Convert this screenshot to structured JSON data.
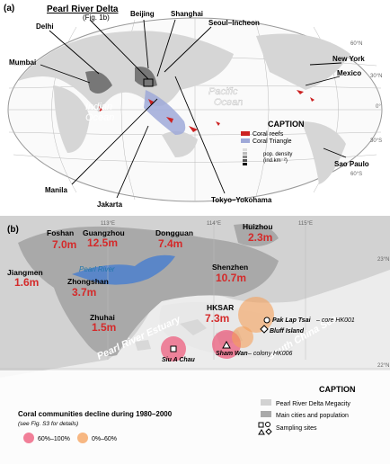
{
  "panel_a": {
    "label": "(a)",
    "inset_title": "Pearl River Delta",
    "inset_ref": "(Fig. 1b)",
    "cities": [
      "Beijing",
      "Shanghai",
      "Seoul–Incheon",
      "Delhi",
      "Mumbai",
      "New York",
      "Mexico",
      "Manila",
      "Jakarta",
      "Tokyo–Yokohama",
      "Sao Paulo"
    ],
    "oceans": [
      "Indian",
      "Ocean",
      "Pacific",
      "Ocean"
    ],
    "latitudes": [
      "60°N",
      "30°N",
      "0°",
      "30°S",
      "60°S"
    ],
    "caption": {
      "title": "CAPTION",
      "items": [
        "Coral reefs",
        "Coral Triangle"
      ],
      "density_title": "pop. density",
      "density_unit": "(ind.km⁻²)"
    }
  },
  "panel_b": {
    "label": "(b)",
    "cities": [
      {
        "name": "Foshan",
        "pop": "7.0m"
      },
      {
        "name": "Guangzhou",
        "pop": "12.5m"
      },
      {
        "name": "Dongguan",
        "pop": "7.4m"
      },
      {
        "name": "Huizhou",
        "pop": "2.3m"
      },
      {
        "name": "Jiangmen",
        "pop": "1.6m"
      },
      {
        "name": "Zhongshan",
        "pop": "3.7m"
      },
      {
        "name": "Shenzhen",
        "pop": "10.7m"
      },
      {
        "name": "Zhuhai",
        "pop": "1.5m"
      },
      {
        "name": "HKSAR",
        "pop": "7.3m"
      }
    ],
    "water": [
      "Pearl River",
      "Pearl River Estuary",
      "South China Sea"
    ],
    "longitudes": [
      "113°E",
      "114°E",
      "115°E"
    ],
    "latitudes": [
      "23°N",
      "22°N"
    ],
    "sites": [
      {
        "name": "Pak Lap Tsai",
        "note": "– core HK001"
      },
      {
        "name": "Bluff Island"
      },
      {
        "name": "Sham Wan",
        "note": "– colony HK006"
      },
      {
        "name": "Siu A Chau"
      }
    ],
    "caption": {
      "title": "CAPTION",
      "items": [
        "Pearl River Delta Megacity",
        "Main cities and population",
        "Sampling sites"
      ],
      "decline_title": "Coral communities decline during 1980–2000",
      "decline_note": "(see Fig. S3 for details)",
      "decline_classes": [
        "60%–100%",
        "0%–60%"
      ]
    }
  }
}
